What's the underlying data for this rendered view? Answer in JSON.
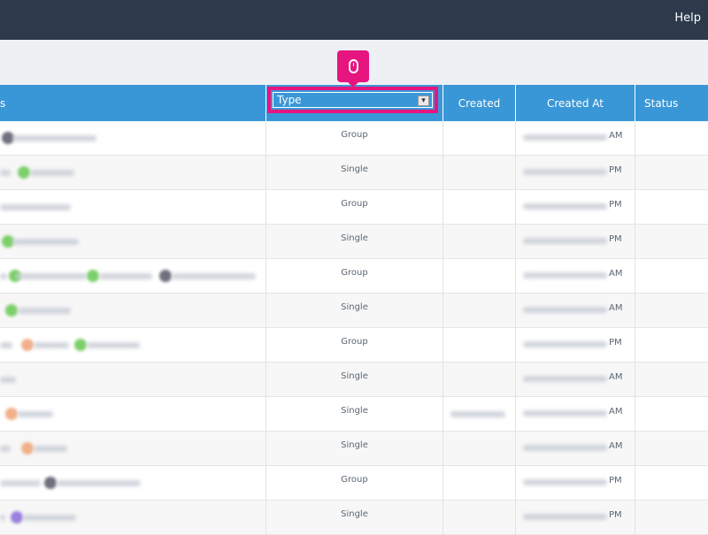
{
  "topbar": {
    "help_label": "Help"
  },
  "header": {
    "first_col_partial": "s",
    "type_label": "Type",
    "created_label": "Created",
    "created_at_label": "Created At",
    "status_label": "Status"
  },
  "badge": {
    "icon": "mouse-icon",
    "color": "#e6157f"
  },
  "rows": [
    {
      "type": "Group",
      "ampm": "AM"
    },
    {
      "type": "Single",
      "ampm": "PM"
    },
    {
      "type": "Group",
      "ampm": "PM"
    },
    {
      "type": "Single",
      "ampm": "PM"
    },
    {
      "type": "Group",
      "ampm": "AM"
    },
    {
      "type": "Single",
      "ampm": "AM"
    },
    {
      "type": "Group",
      "ampm": "PM"
    },
    {
      "type": "Single",
      "ampm": "AM"
    },
    {
      "type": "Single",
      "ampm": "AM"
    },
    {
      "type": "Single",
      "ampm": "AM"
    },
    {
      "type": "Group",
      "ampm": "PM"
    },
    {
      "type": "Single",
      "ampm": "PM"
    }
  ],
  "colors": {
    "header": "#3a97d7",
    "topbar": "#2c3a4c",
    "accent": "#e6157f"
  }
}
